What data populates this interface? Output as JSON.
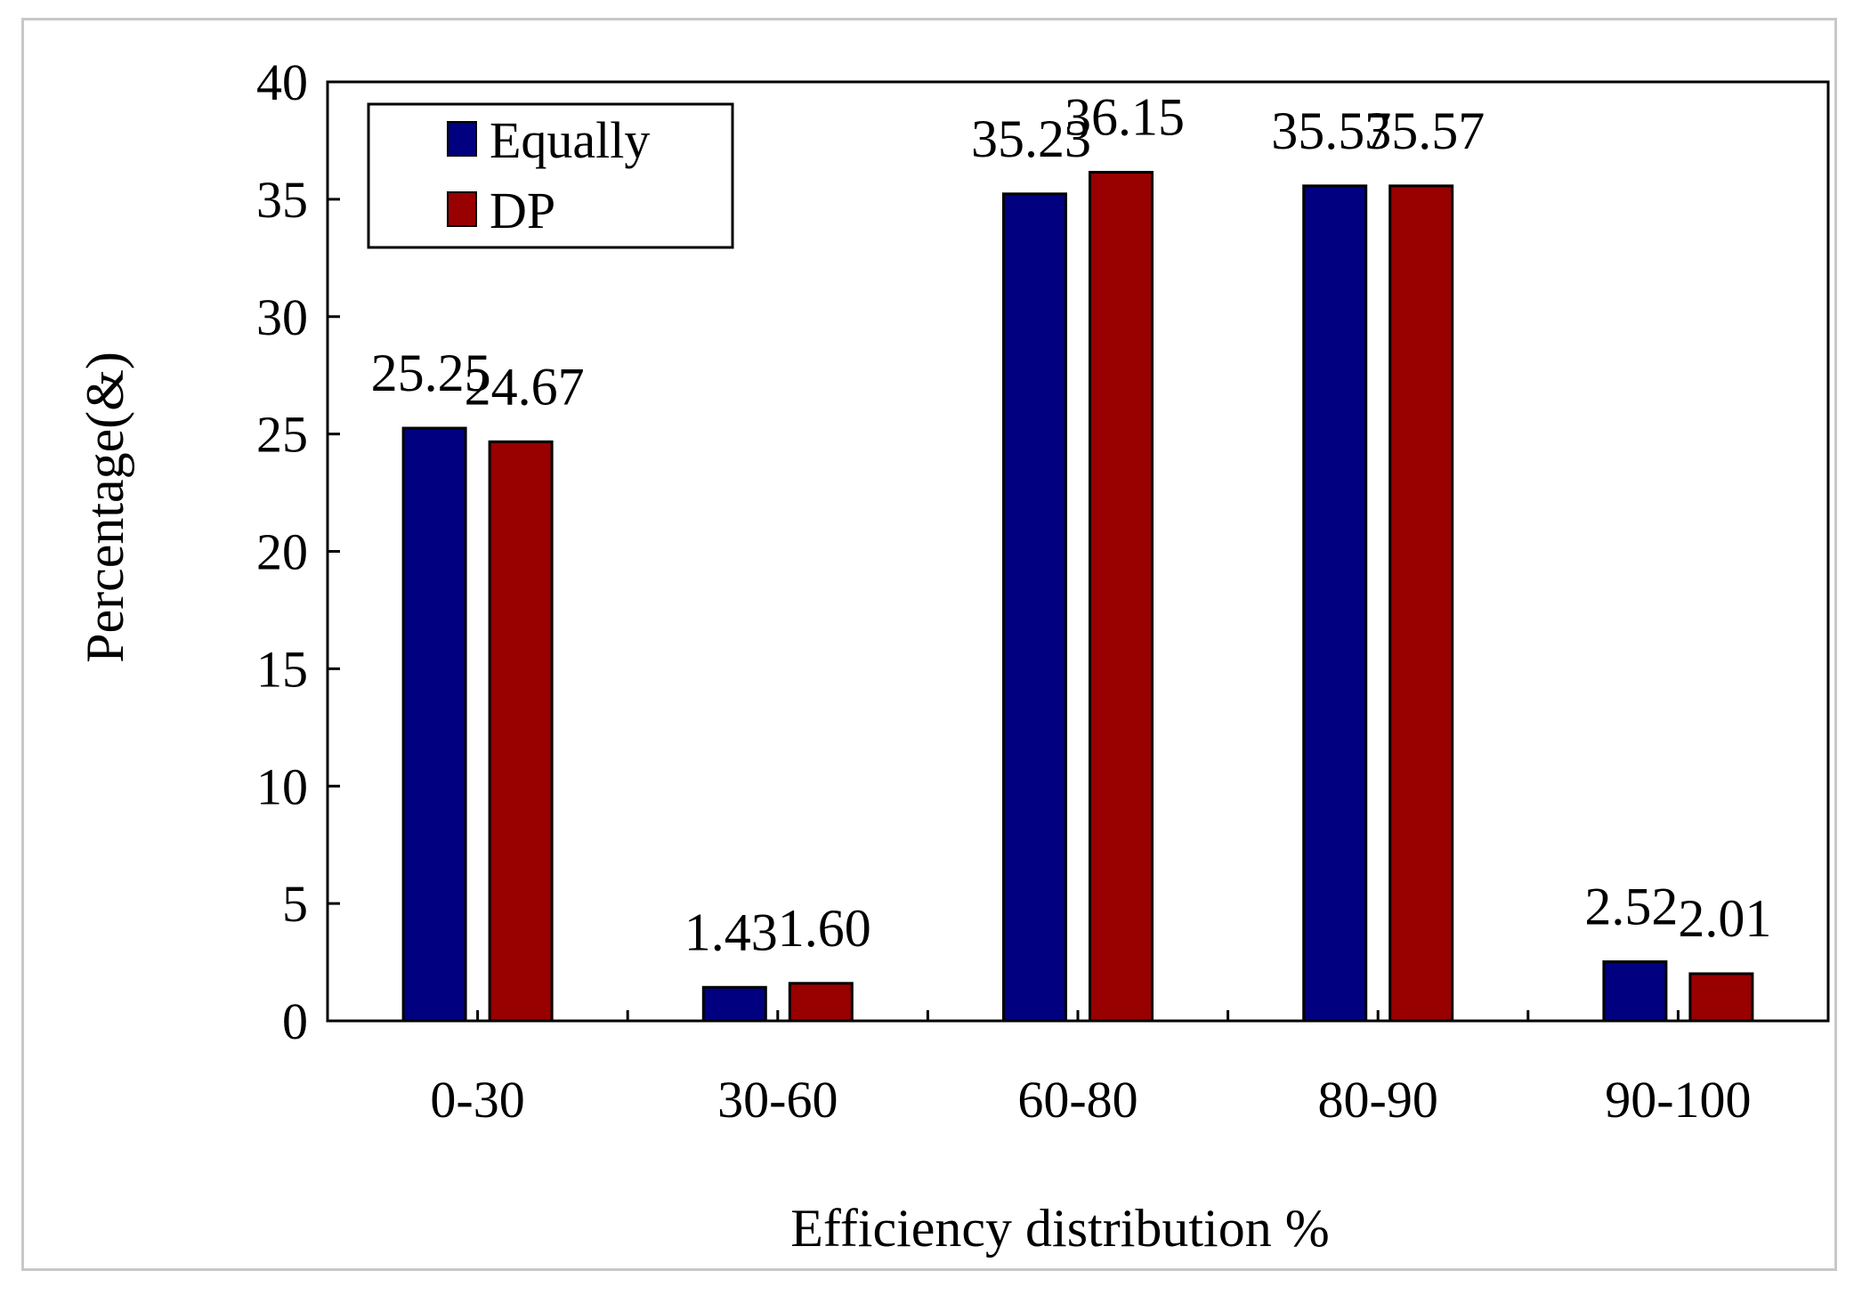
{
  "chart_data": {
    "type": "bar",
    "title": "",
    "xlabel": "Efficiency distribution %",
    "ylabel": "Percentage(&)",
    "ylim": [
      0,
      40
    ],
    "yticks": [
      0,
      5,
      10,
      15,
      20,
      25,
      30,
      35,
      40
    ],
    "categories": [
      "0-30",
      "30-60",
      "60-80",
      "80-90",
      "90-100"
    ],
    "series": [
      {
        "name": "Equally",
        "color": "#000080",
        "values": [
          25.25,
          1.43,
          35.23,
          35.57,
          2.52
        ],
        "labels": [
          "25.25",
          "1.43",
          "35.23",
          "35.57",
          "2.52"
        ]
      },
      {
        "name": "DP",
        "color": "#990000",
        "values": [
          24.67,
          1.6,
          36.15,
          35.57,
          2.01
        ],
        "labels": [
          "24.67",
          "1.60",
          "36.15",
          "35.57",
          "2.01"
        ]
      }
    ],
    "legend": "top-left",
    "grid": false
  }
}
